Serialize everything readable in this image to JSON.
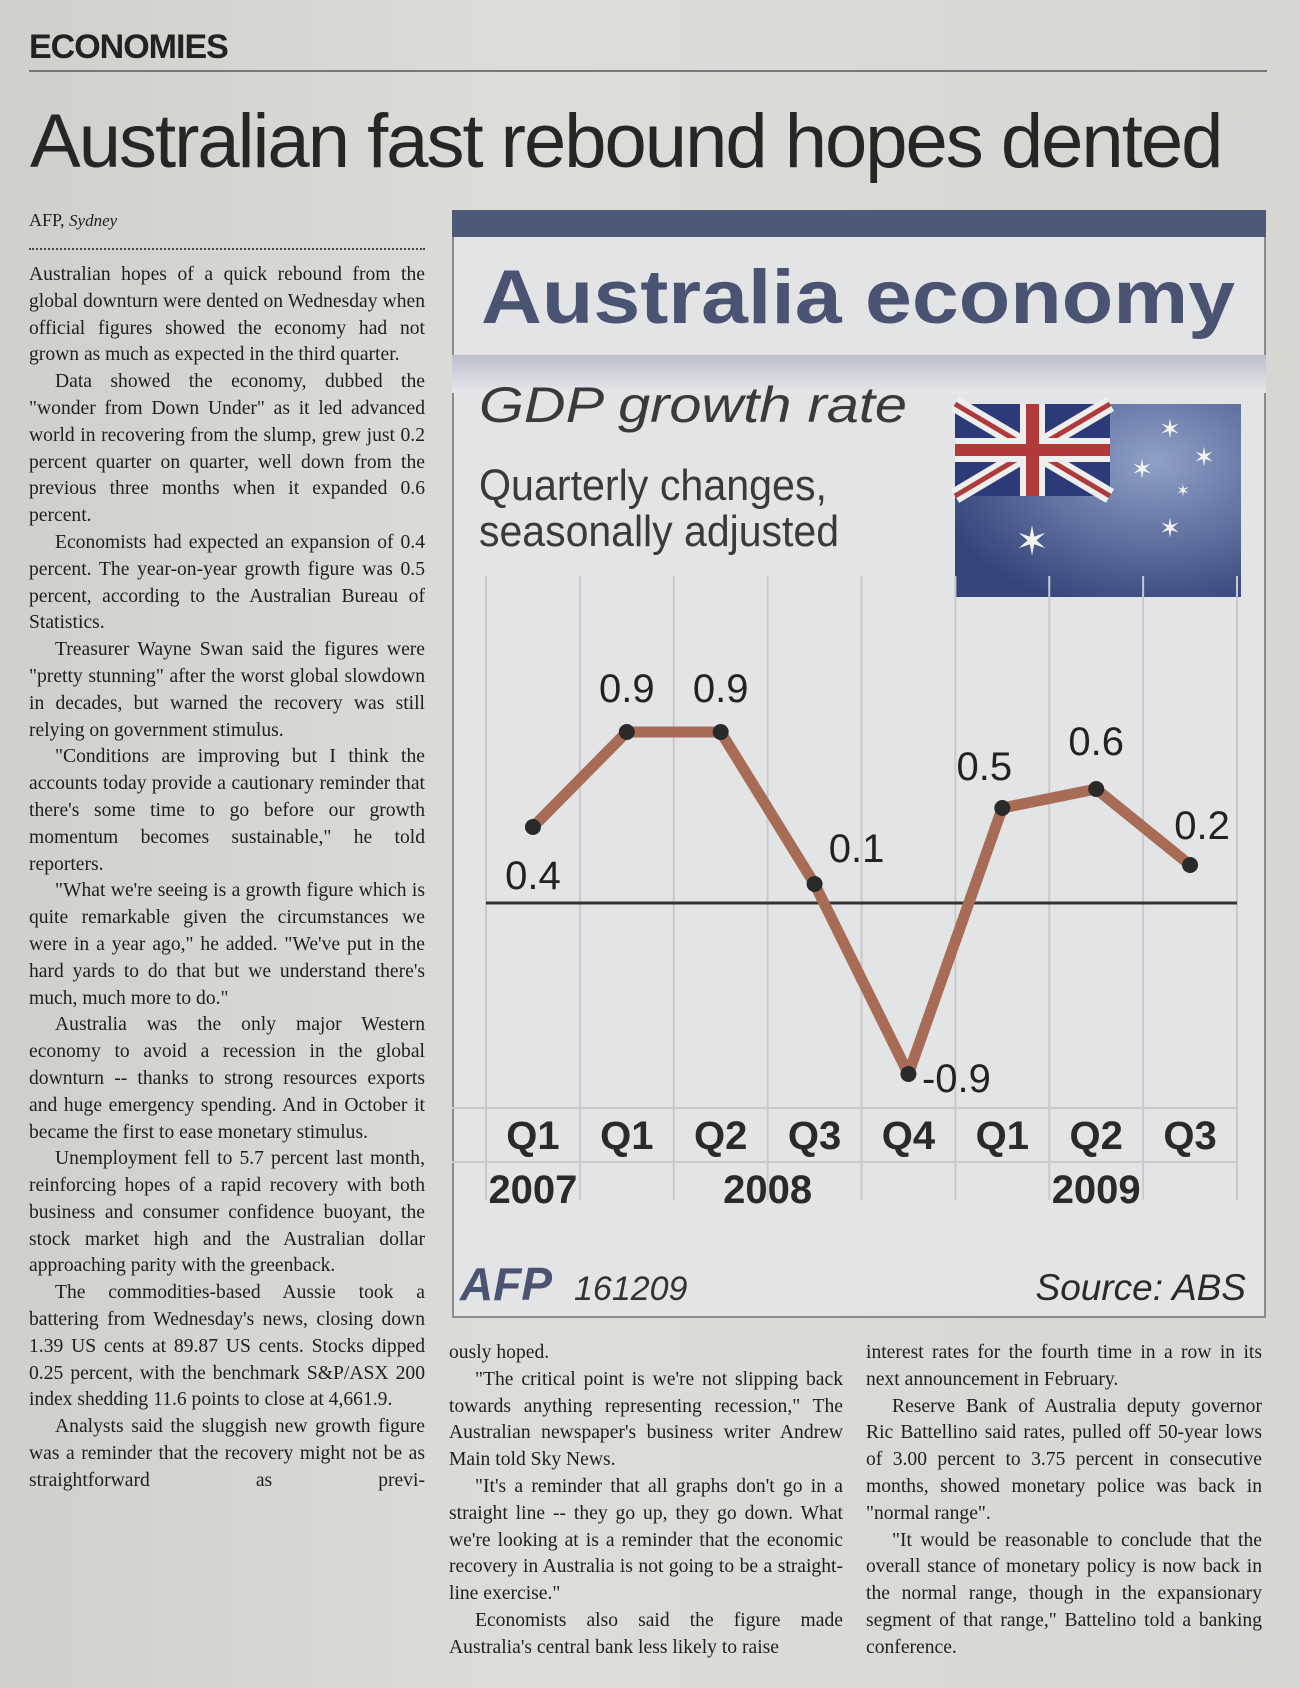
{
  "section": "ECONOMIES",
  "headline": "Australian fast rebound hopes dented",
  "byline": {
    "agency": "AFP",
    "place": "Sydney"
  },
  "article": {
    "columns": [
      [
        "Australian hopes of a quick rebound from the global downturn were dented on Wednesday when official figures showed the economy had not grown as much as expected in the third quarter.",
        "Data showed the economy, dubbed the \"wonder from Down Under\" as it led advanced world in recovering from the slump, grew just 0.2 percent quarter on quarter, well down from the previous three months when it expanded 0.6 percent.",
        "Economists had expected an expansion of 0.4 percent. The year-on-year growth figure was 0.5 percent, according to the Australian Bureau of Statistics.",
        "Treasurer Wayne Swan said the figures were \"pretty stunning\" after the worst global slowdown in decades, but warned the recovery was still relying on government stimulus.",
        "\"Conditions are improving but I think the accounts today provide a cautionary reminder that there's some time to go before our growth momentum becomes sustainable,\" he told reporters.",
        "\"What we're seeing is a growth figure which is quite remarkable given the circumstances we were in a year ago,\" he added. \"We've put in the hard yards to do that but we understand there's much, much more to do.\"",
        "Australia was the only major Western economy to avoid a recession in the global downturn -- thanks to strong resources exports and huge emergency spending. And in October it became the first to ease monetary stimulus.",
        "Unemployment fell to 5.7 percent last month, reinforcing hopes of a rapid recovery with both business and consumer confidence buoyant, the stock market high and the Australian dollar approaching parity with the greenback.",
        "The commodities-based Aussie took a battering from Wednesday's news, closing down 1.39 US cents at 89.87 US cents. Stocks dipped 0.25 percent, with the benchmark S&P/ASX 200 index shedding 11.6 points to close at 4,661.9.",
        "Analysts said the sluggish new growth figure was a reminder that the recovery might not be as straightforward as previ-"
      ],
      [
        "ously hoped.",
        "\"The critical point is we're not slipping back towards anything representing recession,\" The Australian newspaper's business writer Andrew Main told Sky News.",
        "\"It's a reminder that all graphs don't go in a straight line -- they go up, they go down. What we're looking at is a reminder that the economic recovery in Australia is not going to be a straight-line exercise.\"",
        "Economists also said the figure made Australia's central bank less likely to raise"
      ],
      [
        "interest rates for the fourth time in a row in its next announcement in February.",
        "Reserve Bank of Australia deputy governor Ric Battellino said rates, pulled off 50-year lows of 3.00 percent to 3.75 percent in consecutive months, showed monetary police was back in \"normal range\".",
        "\"It would be reasonable to conclude that the overall stance of monetary policy is now back in the normal range, though in the expansionary segment of that range,\" Battelino told a banking conference."
      ]
    ]
  },
  "chart_data": {
    "type": "line",
    "title": "Australia economy",
    "subtitle": "GDP growth rate",
    "note": [
      "Quarterly changes,",
      "seasonally adjusted"
    ],
    "categories": [
      "Q1",
      "Q1",
      "Q2",
      "Q3",
      "Q4",
      "Q1",
      "Q2",
      "Q3"
    ],
    "x_groups": [
      "2007",
      "2008",
      "2009"
    ],
    "values": [
      0.4,
      0.9,
      0.9,
      0.1,
      -0.9,
      0.5,
      0.6,
      0.2
    ],
    "color": "#a86b55",
    "credit": "AFP",
    "date_code": "161209",
    "source": "Source: ABS"
  }
}
